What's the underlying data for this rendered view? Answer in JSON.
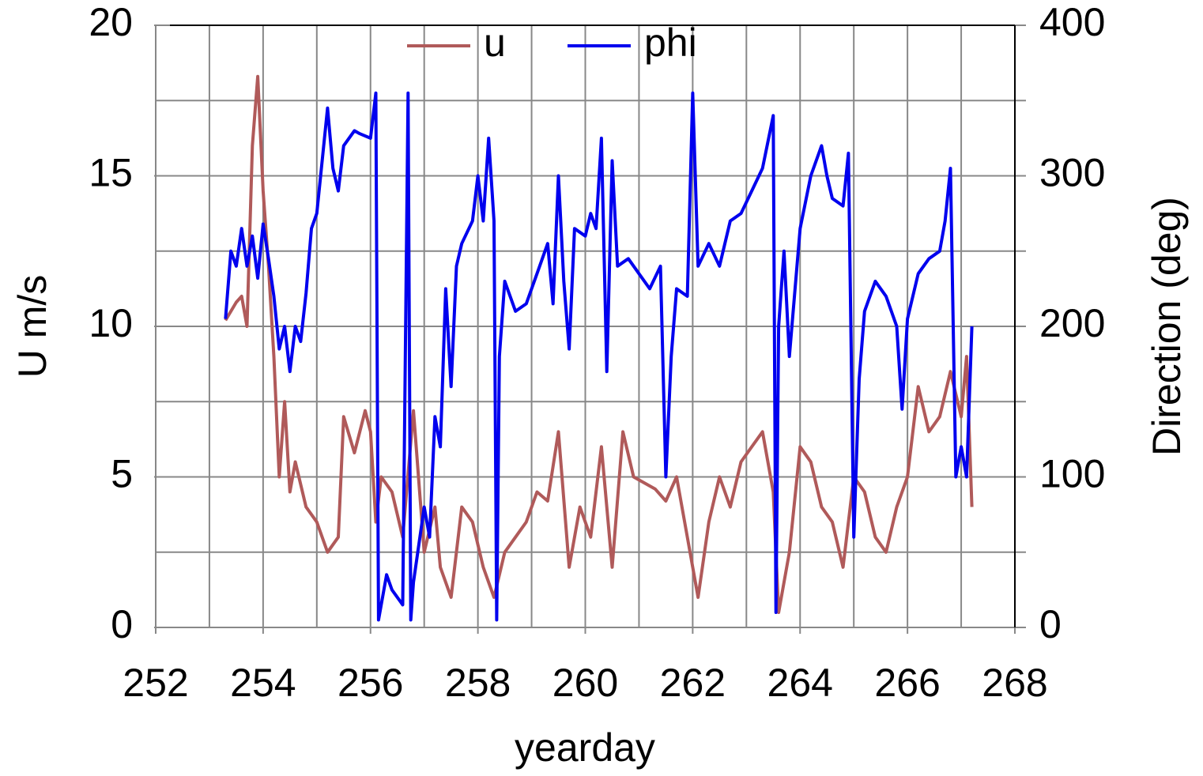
{
  "chart_data": {
    "type": "line",
    "xlabel": "yearday",
    "ylabel": "U m/s",
    "y2label": "Direction (deg)",
    "xlim": [
      252,
      268
    ],
    "xticks": [
      252,
      254,
      256,
      258,
      260,
      262,
      264,
      266,
      268
    ],
    "ylim": [
      0,
      20
    ],
    "yticks": [
      0,
      5,
      10,
      15,
      20
    ],
    "y2lim": [
      0,
      400
    ],
    "y2ticks": [
      0,
      100,
      200,
      300,
      400
    ],
    "grid": true,
    "xgrid": [
      253,
      254,
      255,
      256,
      257,
      258,
      259,
      260,
      261,
      262,
      263,
      264,
      265,
      266,
      267
    ],
    "ygrid": [
      2.5,
      5,
      7.5,
      10,
      12.5,
      15,
      17.5
    ],
    "legend": "top",
    "series": [
      {
        "name": "u",
        "color": "#b05a5a",
        "x": [
          253.3,
          253.5,
          253.6,
          253.7,
          253.8,
          253.9,
          254.0,
          254.1,
          254.2,
          254.3,
          254.4,
          254.5,
          254.6,
          254.8,
          255.0,
          255.2,
          255.4,
          255.5,
          255.7,
          255.9,
          256.0,
          256.1,
          256.2,
          256.4,
          256.6,
          256.8,
          257.0,
          257.2,
          257.3,
          257.5,
          257.7,
          257.9,
          258.1,
          258.3,
          258.5,
          258.7,
          258.9,
          259.1,
          259.3,
          259.5,
          259.7,
          259.9,
          260.1,
          260.3,
          260.5,
          260.7,
          260.9,
          261.1,
          261.3,
          261.5,
          261.7,
          261.9,
          262.1,
          262.3,
          262.5,
          262.7,
          262.9,
          263.1,
          263.3,
          263.5,
          263.6,
          263.8,
          264.0,
          264.2,
          264.4,
          264.6,
          264.8,
          265.0,
          265.2,
          265.4,
          265.6,
          265.8,
          266.0,
          266.2,
          266.4,
          266.6,
          266.8,
          267.0,
          267.1,
          267.2
        ],
        "values": [
          10.2,
          10.8,
          11,
          10,
          16,
          18.3,
          14.5,
          12,
          9,
          5,
          7.5,
          4.5,
          5.5,
          4,
          3.5,
          2.5,
          3,
          7,
          5.8,
          7.2,
          6.5,
          3.5,
          5,
          4.5,
          3,
          7.2,
          2.5,
          4,
          2,
          1,
          4,
          3.5,
          2,
          1,
          2.5,
          3,
          3.5,
          4.5,
          4.2,
          6.5,
          2,
          4,
          3,
          6,
          2,
          6.5,
          5,
          4.8,
          4.6,
          4.2,
          5,
          3,
          1,
          3.5,
          5,
          4,
          5.5,
          6,
          6.5,
          4.5,
          0.5,
          2.5,
          6,
          5.5,
          4,
          3.5,
          2,
          5,
          4.5,
          3,
          2.5,
          4,
          5,
          8,
          6.5,
          7,
          8.5,
          7,
          9,
          4
        ]
      },
      {
        "name": "phi",
        "color": "#0000ee",
        "axis": "y2",
        "x": [
          253.3,
          253.4,
          253.5,
          253.6,
          253.7,
          253.8,
          253.9,
          254.0,
          254.1,
          254.2,
          254.3,
          254.4,
          254.5,
          254.6,
          254.7,
          254.8,
          254.9,
          255.0,
          255.1,
          255.2,
          255.3,
          255.4,
          255.5,
          255.6,
          255.7,
          255.8,
          256.0,
          256.1,
          256.15,
          256.2,
          256.3,
          256.4,
          256.6,
          256.7,
          256.75,
          256.8,
          257.0,
          257.1,
          257.2,
          257.3,
          257.4,
          257.5,
          257.6,
          257.7,
          257.9,
          258.0,
          258.1,
          258.2,
          258.3,
          258.35,
          258.4,
          258.5,
          258.7,
          258.9,
          259.1,
          259.3,
          259.4,
          259.5,
          259.6,
          259.7,
          259.8,
          260.0,
          260.1,
          260.2,
          260.3,
          260.4,
          260.5,
          260.6,
          260.8,
          261.0,
          261.2,
          261.4,
          261.5,
          261.6,
          261.7,
          261.9,
          262.0,
          262.1,
          262.3,
          262.5,
          262.7,
          262.9,
          263.1,
          263.3,
          263.5,
          263.55,
          263.6,
          263.7,
          263.8,
          264.0,
          264.2,
          264.4,
          264.5,
          264.6,
          264.8,
          264.9,
          265.0,
          265.1,
          265.2,
          265.4,
          265.6,
          265.8,
          265.9,
          266.0,
          266.2,
          266.4,
          266.6,
          266.7,
          266.8,
          266.9,
          267.0,
          267.1,
          267.2
        ],
        "values": [
          205,
          250,
          240,
          265,
          240,
          260,
          232,
          268,
          245,
          220,
          185,
          200,
          170,
          200,
          190,
          222,
          265,
          275,
          310,
          345,
          305,
          290,
          320,
          325,
          330,
          328,
          325,
          355,
          5,
          15,
          35,
          25,
          15,
          355,
          5,
          30,
          80,
          60,
          140,
          120,
          225,
          160,
          240,
          255,
          270,
          300,
          270,
          325,
          270,
          5,
          180,
          230,
          210,
          215,
          235,
          255,
          215,
          300,
          230,
          185,
          265,
          260,
          275,
          265,
          325,
          170,
          310,
          240,
          245,
          235,
          225,
          240,
          100,
          180,
          225,
          220,
          355,
          240,
          255,
          240,
          270,
          275,
          290,
          305,
          340,
          10,
          200,
          250,
          180,
          265,
          300,
          320,
          300,
          285,
          280,
          315,
          60,
          165,
          210,
          230,
          220,
          200,
          145,
          205,
          235,
          245,
          250,
          270,
          305,
          100,
          120,
          100,
          200
        ]
      }
    ]
  }
}
